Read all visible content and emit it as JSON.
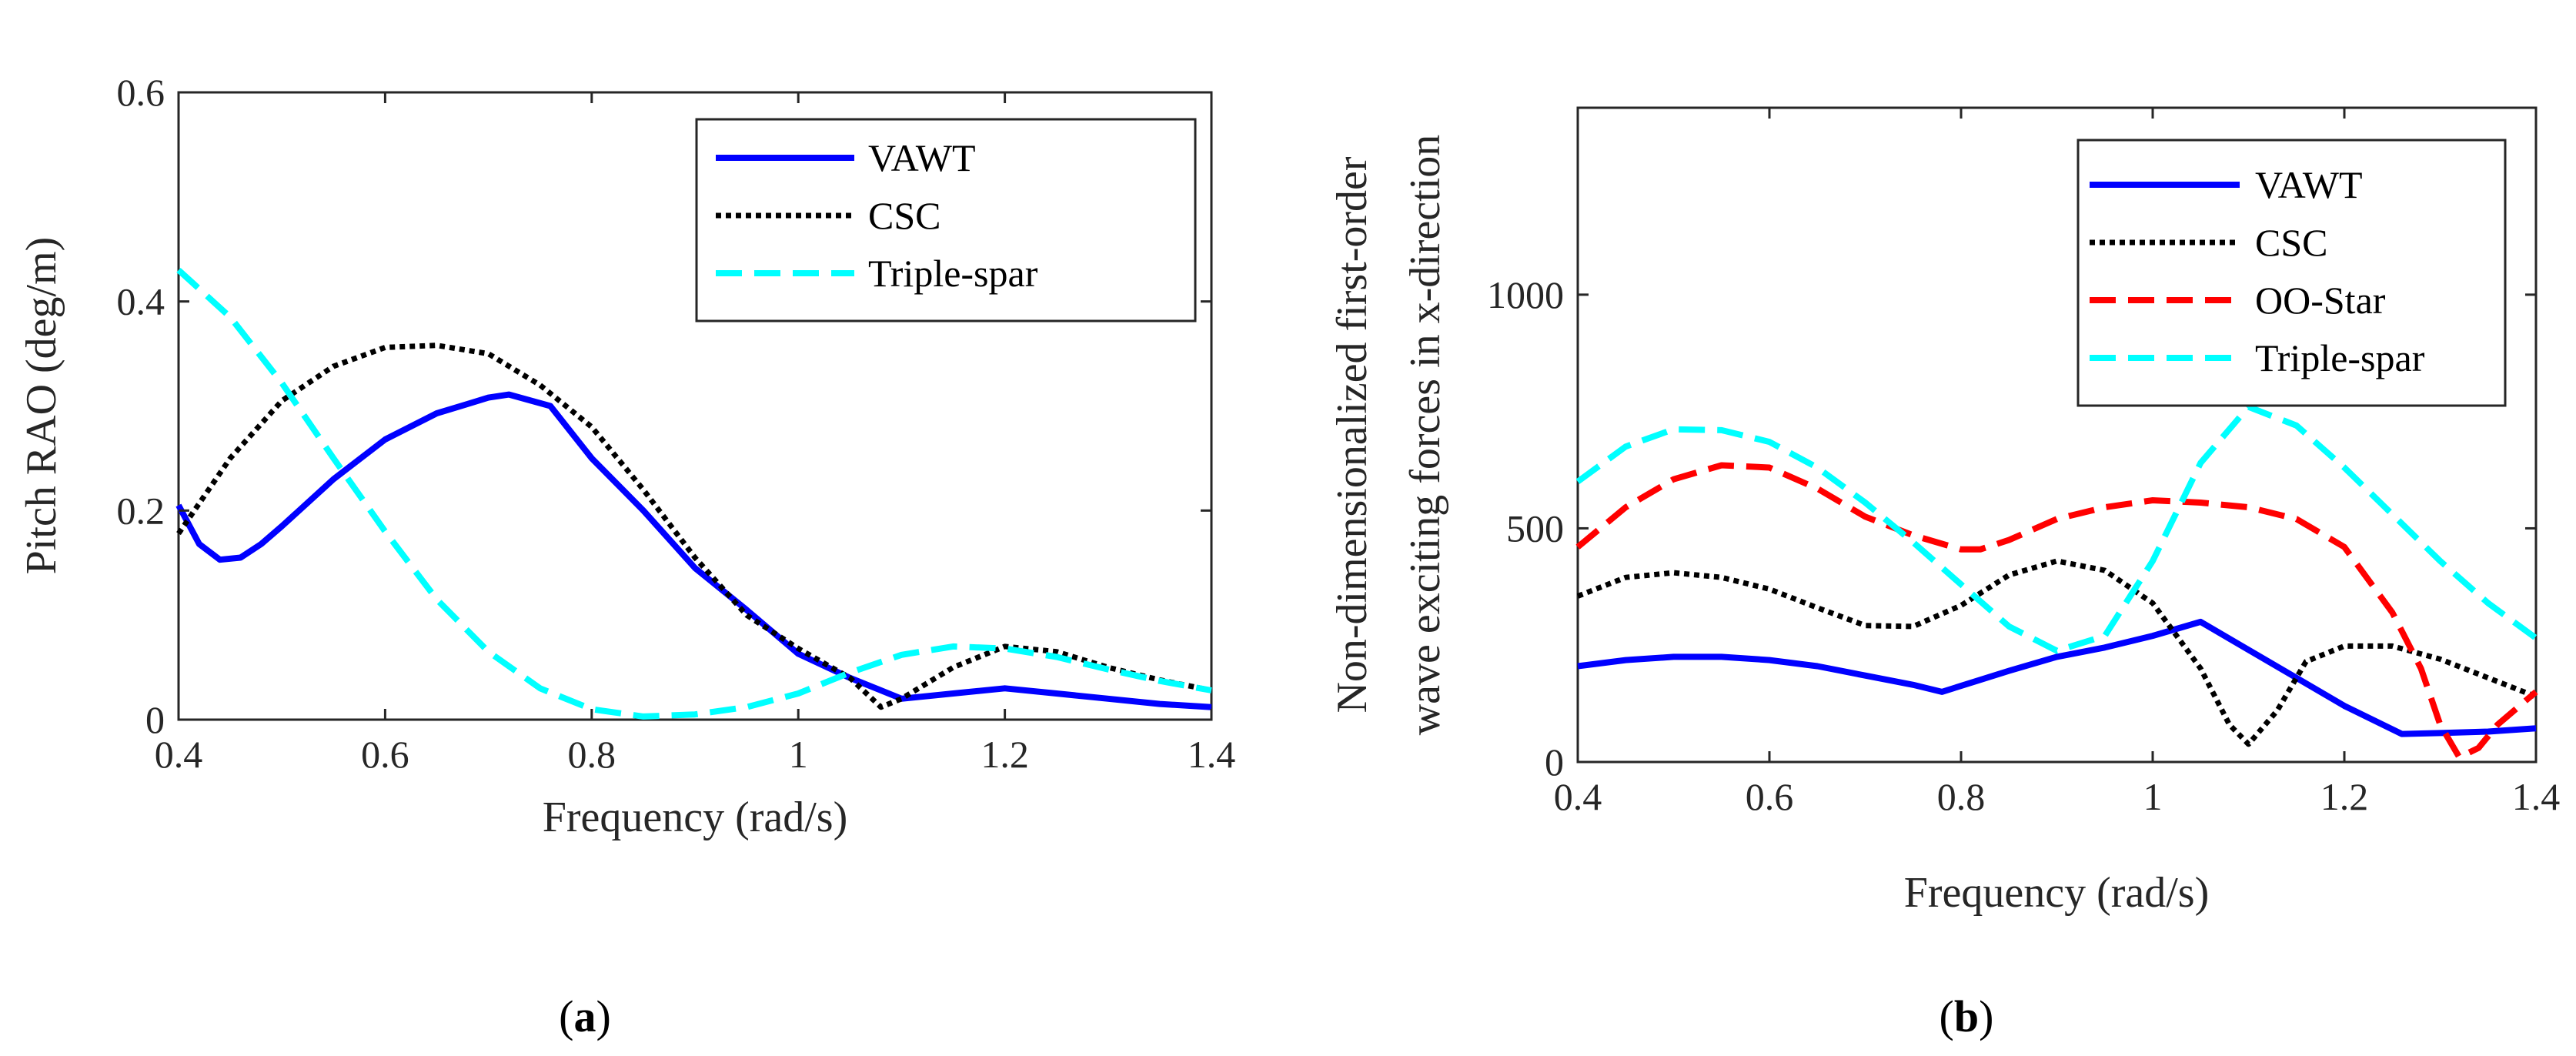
{
  "chart_data": [
    {
      "type": "line",
      "panel_label": "a",
      "xlabel": "Frequency (rad/s)",
      "ylabel": "Pitch RAO (deg/m)",
      "xlim": [
        0.4,
        1.4
      ],
      "ylim": [
        0,
        0.6
      ],
      "xticks": [
        "0.4",
        "0.6",
        "0.8",
        "1",
        "1.2",
        "1.4"
      ],
      "yticks": [
        "0",
        "0.2",
        "0.4",
        "0.6"
      ],
      "grid": false,
      "legend_position": "top-right",
      "series": [
        {
          "name": "VAWT",
          "color": "#0000FF",
          "style": "solid",
          "x": [
            0.4,
            0.42,
            0.44,
            0.46,
            0.48,
            0.5,
            0.55,
            0.6,
            0.65,
            0.68,
            0.7,
            0.72,
            0.76,
            0.8,
            0.85,
            0.9,
            0.95,
            1.0,
            1.05,
            1.1,
            1.15,
            1.2,
            1.25,
            1.3,
            1.35,
            1.4
          ],
          "y": [
            0.205,
            0.168,
            0.153,
            0.155,
            0.168,
            0.185,
            0.23,
            0.268,
            0.293,
            0.302,
            0.308,
            0.311,
            0.3,
            0.25,
            0.2,
            0.145,
            0.105,
            0.063,
            0.04,
            0.02,
            0.025,
            0.03,
            0.025,
            0.02,
            0.015,
            0.012
          ]
        },
        {
          "name": "CSC",
          "color": "#000000",
          "style": "dotted",
          "x": [
            0.4,
            0.45,
            0.5,
            0.55,
            0.6,
            0.65,
            0.7,
            0.75,
            0.8,
            0.85,
            0.9,
            0.95,
            1.0,
            1.05,
            1.08,
            1.1,
            1.15,
            1.2,
            1.25,
            1.3,
            1.35,
            1.4
          ],
          "y": [
            0.178,
            0.25,
            0.305,
            0.338,
            0.356,
            0.358,
            0.35,
            0.32,
            0.28,
            0.22,
            0.155,
            0.1,
            0.068,
            0.04,
            0.012,
            0.02,
            0.05,
            0.07,
            0.065,
            0.05,
            0.038,
            0.028
          ]
        },
        {
          "name": "Triple-spar",
          "color": "#00FFFF",
          "style": "dashed",
          "x": [
            0.4,
            0.45,
            0.5,
            0.55,
            0.6,
            0.65,
            0.7,
            0.75,
            0.8,
            0.85,
            0.9,
            0.95,
            1.0,
            1.05,
            1.1,
            1.15,
            1.2,
            1.25,
            1.3,
            1.35,
            1.4
          ],
          "y": [
            0.43,
            0.385,
            0.322,
            0.25,
            0.18,
            0.115,
            0.065,
            0.03,
            0.01,
            0.003,
            0.005,
            0.012,
            0.025,
            0.045,
            0.062,
            0.07,
            0.068,
            0.06,
            0.048,
            0.037,
            0.028
          ]
        }
      ]
    },
    {
      "type": "line",
      "panel_label": "b",
      "xlabel": "Frequency (rad/s)",
      "ylabel_lines": [
        "Non-dimensionalized first-order",
        "wave exciting forces in x-direction"
      ],
      "xlim": [
        0.4,
        1.4
      ],
      "ylim": [
        0,
        1400
      ],
      "xticks": [
        "0.4",
        "0.6",
        "0.8",
        "1",
        "1.2",
        "1.4"
      ],
      "yticks": [
        "0",
        "500",
        "1000"
      ],
      "grid": false,
      "legend_position": "top-right",
      "series": [
        {
          "name": "VAWT",
          "color": "#0000FF",
          "style": "solid",
          "x": [
            0.4,
            0.45,
            0.5,
            0.55,
            0.6,
            0.65,
            0.7,
            0.75,
            0.78,
            0.85,
            0.9,
            0.95,
            1.0,
            1.05,
            1.1,
            1.15,
            1.2,
            1.26,
            1.3,
            1.35,
            1.4
          ],
          "y": [
            205,
            218,
            225,
            225,
            218,
            205,
            185,
            165,
            150,
            195,
            225,
            245,
            270,
            300,
            240,
            180,
            120,
            60,
            62,
            65,
            72
          ]
        },
        {
          "name": "CSC",
          "color": "#000000",
          "style": "dotted",
          "x": [
            0.4,
            0.45,
            0.5,
            0.55,
            0.6,
            0.65,
            0.7,
            0.75,
            0.8,
            0.85,
            0.9,
            0.95,
            1.0,
            1.05,
            1.08,
            1.1,
            1.13,
            1.16,
            1.2,
            1.25,
            1.3,
            1.35,
            1.4
          ],
          "y": [
            355,
            395,
            405,
            395,
            370,
            330,
            292,
            290,
            335,
            400,
            430,
            410,
            340,
            200,
            80,
            38,
            110,
            215,
            248,
            248,
            220,
            180,
            140
          ]
        },
        {
          "name": "OO-Star",
          "color": "#FF0000",
          "style": "dashed",
          "x": [
            0.4,
            0.45,
            0.5,
            0.55,
            0.6,
            0.65,
            0.7,
            0.75,
            0.8,
            0.82,
            0.85,
            0.9,
            0.95,
            1.0,
            1.05,
            1.1,
            1.15,
            1.2,
            1.25,
            1.28,
            1.3,
            1.32,
            1.34,
            1.36,
            1.4
          ],
          "y": [
            460,
            545,
            605,
            635,
            630,
            585,
            525,
            485,
            455,
            455,
            475,
            520,
            545,
            560,
            555,
            545,
            520,
            460,
            320,
            200,
            80,
            10,
            30,
            80,
            150
          ]
        },
        {
          "name": "Triple-spar",
          "color": "#00FFFF",
          "style": "dashed",
          "x": [
            0.4,
            0.45,
            0.5,
            0.55,
            0.6,
            0.65,
            0.7,
            0.75,
            0.8,
            0.85,
            0.9,
            0.95,
            1.0,
            1.05,
            1.1,
            1.15,
            1.2,
            1.25,
            1.3,
            1.35,
            1.4
          ],
          "y": [
            600,
            675,
            712,
            710,
            685,
            630,
            555,
            470,
            380,
            290,
            238,
            270,
            430,
            640,
            760,
            720,
            630,
            530,
            430,
            340,
            265
          ]
        }
      ]
    }
  ],
  "captions": {
    "a": {
      "open": "(",
      "letter": "a",
      "close": ")"
    },
    "b": {
      "open": "(",
      "letter": "b",
      "close": ")"
    }
  }
}
